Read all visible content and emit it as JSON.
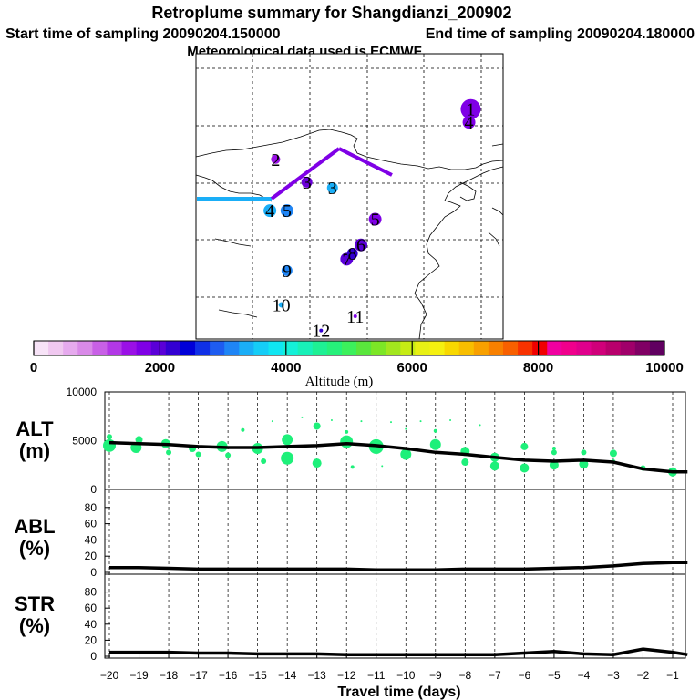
{
  "header": {
    "title": "Retroplume summary for Shangdianzi_200902",
    "start_label": "Start time of sampling 20090204.150000",
    "end_label": "End time of sampling 20090204.180000",
    "met_label": "Meteorological data used is ECMWF"
  },
  "colorbar": {
    "label": "Altitude (m)",
    "ticks": [
      "0",
      "2000",
      "4000",
      "6000",
      "8000",
      "10000"
    ],
    "colors": [
      "#f7e3f7",
      "#f0c8f0",
      "#e6aaee",
      "#d98ae8",
      "#c860e6",
      "#b238e6",
      "#9a10e6",
      "#7f00e6",
      "#5a00d8",
      "#3300d2",
      "#0000d8",
      "#1030e6",
      "#1e5cf0",
      "#1f85f5",
      "#1aaef7",
      "#15cdf7",
      "#10e6f2",
      "#14f0d8",
      "#18f0b8",
      "#1ef094",
      "#26f07a",
      "#3cf05c",
      "#5ae63c",
      "#7ce626",
      "#a2e61e",
      "#c6ec14",
      "#e8f014",
      "#f5f010",
      "#f8d800",
      "#f8be00",
      "#f8a000",
      "#f88000",
      "#f86000",
      "#f83200",
      "#f00000",
      "#f000a0",
      "#f0008c",
      "#e0008c",
      "#d0007a",
      "#b8006c",
      "#a0006a",
      "#800064",
      "#600060"
    ]
  },
  "map": {
    "markers": [
      {
        "label": "1",
        "lon": 48.3,
        "lat": 40.3,
        "r": 11,
        "color": "#7f00e6"
      },
      {
        "label": "2",
        "lon": 14.0,
        "lat": 31.5,
        "r": 5,
        "color": "#9a10e6"
      },
      {
        "label": "3",
        "lon": 19.5,
        "lat": 27.5,
        "r": 6,
        "color": "#6a00d8"
      },
      {
        "label": "3",
        "lon": 24.0,
        "lat": 26.5,
        "r": 6,
        "color": "#1aaef7"
      },
      {
        "label": "4",
        "lon": 48.0,
        "lat": 38.0,
        "r": 7,
        "color": "#7f00e6"
      },
      {
        "label": "4",
        "lon": 13.0,
        "lat": 22.5,
        "r": 7,
        "color": "#1aaef7"
      },
      {
        "label": "5",
        "lon": 16.0,
        "lat": 22.5,
        "r": 7,
        "color": "#1f85f5"
      },
      {
        "label": "5",
        "lon": 31.5,
        "lat": 21.0,
        "r": 7,
        "color": "#7f00e6"
      },
      {
        "label": "6",
        "lon": 29.0,
        "lat": 16.5,
        "r": 7,
        "color": "#5a00d8"
      },
      {
        "label": "7",
        "lon": 26.5,
        "lat": 14.0,
        "r": 7,
        "color": "#5a00d8"
      },
      {
        "label": "8",
        "lon": 27.5,
        "lat": 15.0,
        "r": 6,
        "color": "#3300d2"
      },
      {
        "label": "9",
        "lon": 16.0,
        "lat": 12.0,
        "r": 6,
        "color": "#1f85f5"
      },
      {
        "label": "10",
        "lon": 15.0,
        "lat": 6.0,
        "r": 3,
        "color": "#1aaef7"
      },
      {
        "label": "11",
        "lon": 28.0,
        "lat": 4.0,
        "r": 2,
        "color": "#7f00e6"
      },
      {
        "label": "12",
        "lon": 22.0,
        "lat": 1.5,
        "r": 2,
        "color": "#3300d2"
      }
    ]
  },
  "chart_data": [
    {
      "type": "scatter",
      "title": "ALT (m)",
      "xlabel": "Travel time (days)",
      "ylabel": "ALT (m)",
      "xlim": [
        -20,
        -0.5
      ],
      "ylim": [
        0,
        10000
      ],
      "yticks": [
        0,
        5000,
        10000
      ],
      "line": {
        "x": [
          -20,
          -19,
          -18,
          -17,
          -16,
          -15,
          -14,
          -13,
          -12,
          -11,
          -10,
          -9,
          -8,
          -7,
          -6,
          -5,
          -4,
          -3,
          -2,
          -1,
          -0.5
        ],
        "y": [
          4800,
          4700,
          4600,
          4400,
          4300,
          4300,
          4400,
          4500,
          4700,
          4500,
          4200,
          3800,
          3600,
          3300,
          3000,
          2900,
          3000,
          2800,
          2100,
          1800,
          1800
        ]
      },
      "points": [
        {
          "x": -20.0,
          "y": 4500,
          "s": 7
        },
        {
          "x": -20.0,
          "y": 5400,
          "s": 3
        },
        {
          "x": -19.1,
          "y": 4300,
          "s": 6
        },
        {
          "x": -19.0,
          "y": 5100,
          "s": 4
        },
        {
          "x": -18.1,
          "y": 4700,
          "s": 5
        },
        {
          "x": -18.0,
          "y": 3800,
          "s": 3
        },
        {
          "x": -17.2,
          "y": 4200,
          "s": 4
        },
        {
          "x": -17.0,
          "y": 3600,
          "s": 3
        },
        {
          "x": -16.2,
          "y": 4400,
          "s": 6
        },
        {
          "x": -16.0,
          "y": 3500,
          "s": 3
        },
        {
          "x": -15.5,
          "y": 6100,
          "s": 2
        },
        {
          "x": -15.0,
          "y": 4200,
          "s": 6
        },
        {
          "x": -14.8,
          "y": 2900,
          "s": 3
        },
        {
          "x": -14.5,
          "y": 7000,
          "s": 1
        },
        {
          "x": -14.0,
          "y": 5100,
          "s": 6
        },
        {
          "x": -14.0,
          "y": 3200,
          "s": 7
        },
        {
          "x": -13.5,
          "y": 7400,
          "s": 1
        },
        {
          "x": -13.0,
          "y": 6500,
          "s": 4
        },
        {
          "x": -13.0,
          "y": 2700,
          "s": 5
        },
        {
          "x": -12.5,
          "y": 7100,
          "s": 1
        },
        {
          "x": -12.0,
          "y": 4900,
          "s": 7
        },
        {
          "x": -12.0,
          "y": 5900,
          "s": 2
        },
        {
          "x": -11.8,
          "y": 2300,
          "s": 2
        },
        {
          "x": -11.5,
          "y": 7000,
          "s": 1
        },
        {
          "x": -11.0,
          "y": 4400,
          "s": 8
        },
        {
          "x": -10.8,
          "y": 2400,
          "s": 1
        },
        {
          "x": -10.5,
          "y": 6900,
          "s": 1
        },
        {
          "x": -10.0,
          "y": 3600,
          "s": 6
        },
        {
          "x": -10.0,
          "y": 6200,
          "s": 1
        },
        {
          "x": -9.5,
          "y": 7000,
          "s": 1
        },
        {
          "x": -9.0,
          "y": 4600,
          "s": 6
        },
        {
          "x": -9.0,
          "y": 6000,
          "s": 2
        },
        {
          "x": -8.5,
          "y": 7100,
          "s": 1
        },
        {
          "x": -8.0,
          "y": 3900,
          "s": 5
        },
        {
          "x": -8.0,
          "y": 2800,
          "s": 4
        },
        {
          "x": -7.5,
          "y": 6600,
          "s": 1
        },
        {
          "x": -7.0,
          "y": 3300,
          "s": 5
        },
        {
          "x": -7.0,
          "y": 2400,
          "s": 5
        },
        {
          "x": -6.0,
          "y": 4400,
          "s": 4
        },
        {
          "x": -6.0,
          "y": 2200,
          "s": 5
        },
        {
          "x": -5.0,
          "y": 2500,
          "s": 5
        },
        {
          "x": -5.0,
          "y": 4200,
          "s": 2
        },
        {
          "x": -5.0,
          "y": 3800,
          "s": 3
        },
        {
          "x": -4.0,
          "y": 2600,
          "s": 5
        },
        {
          "x": -4.0,
          "y": 3800,
          "s": 3
        },
        {
          "x": -3.0,
          "y": 3700,
          "s": 4
        },
        {
          "x": -3.0,
          "y": 2900,
          "s": 2
        },
        {
          "x": -2.0,
          "y": 2200,
          "s": 3
        },
        {
          "x": -1.0,
          "y": 1800,
          "s": 5
        }
      ]
    },
    {
      "type": "line",
      "title": "ABL (%)",
      "xlabel": "Travel time (days)",
      "ylabel": "ABL (%)",
      "xlim": [
        -20,
        -0.5
      ],
      "ylim": [
        0,
        100
      ],
      "yticks": [
        0,
        20,
        40,
        60,
        80
      ],
      "x": [
        -20,
        -19,
        -18,
        -17,
        -16,
        -15,
        -14,
        -13,
        -12,
        -11,
        -10,
        -9,
        -8,
        -7,
        -6,
        -5,
        -4,
        -3,
        -2,
        -1,
        -0.5
      ],
      "y": [
        6,
        6,
        5,
        4,
        4,
        4,
        4,
        4,
        4,
        3,
        3,
        3,
        4,
        4,
        4,
        5,
        6,
        8,
        11,
        12,
        12
      ]
    },
    {
      "type": "line",
      "title": "STR (%)",
      "xlabel": "Travel time (days)",
      "ylabel": "STR (%)",
      "xlim": [
        -20,
        -0.5
      ],
      "ylim": [
        0,
        100
      ],
      "yticks": [
        0,
        20,
        40,
        60,
        80
      ],
      "x": [
        -20,
        -19,
        -18,
        -17,
        -16,
        -15,
        -14,
        -13,
        -12,
        -11,
        -10,
        -9,
        -8,
        -7,
        -6,
        -5,
        -4,
        -3,
        -2,
        -1,
        -0.5
      ],
      "y": [
        5,
        5,
        5,
        4,
        4,
        3,
        3,
        3,
        2,
        2,
        2,
        2,
        2,
        2,
        4,
        6,
        3,
        2,
        9,
        5,
        2
      ],
      "xticks": [
        "−20",
        "−19",
        "−18",
        "−17",
        "−16",
        "−15",
        "−14",
        "−13",
        "−12",
        "−11",
        "−10",
        "−9",
        "−8",
        "−7",
        "−6",
        "−5",
        "−4",
        "−3",
        "−2",
        "−1"
      ]
    }
  ],
  "panels": {
    "alt": {
      "label1": "ALT",
      "label2": "(m)",
      "ytick_labels": [
        "10000",
        "5000",
        "0"
      ]
    },
    "abl": {
      "label1": "ABL",
      "label2": "(%)",
      "ytick_labels": [
        "80",
        "60",
        "40",
        "20",
        "0"
      ]
    },
    "str": {
      "label1": "STR",
      "label2": "(%)",
      "ytick_labels": [
        "80",
        "60",
        "40",
        "20",
        "0"
      ]
    },
    "xlabel": "Travel time (days)"
  },
  "colors": {
    "point": "#1ef07a",
    "line": "#000000"
  }
}
